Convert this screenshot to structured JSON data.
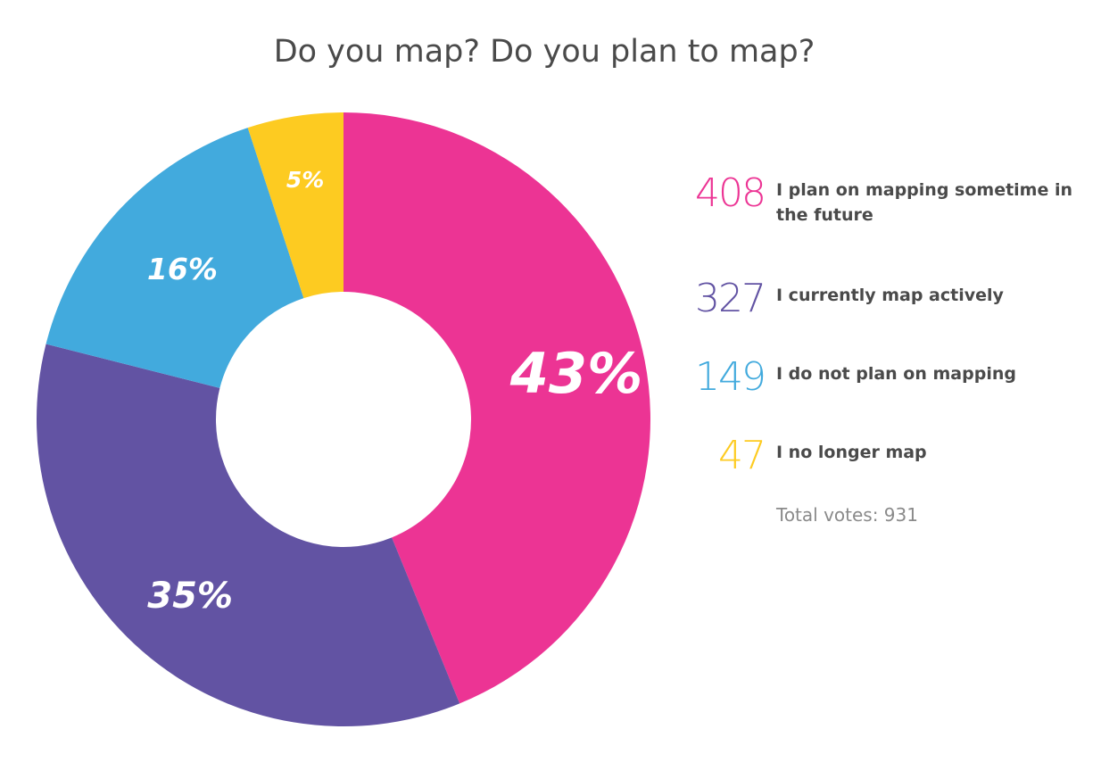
{
  "chart_data": {
    "type": "pie",
    "title": "Do you map? Do you plan to map?",
    "legend_position": "right",
    "slices": [
      {
        "label": "I plan on mapping sometime in the future",
        "value": 408,
        "percent_label": "43%",
        "color": "#ec3494"
      },
      {
        "label": "I currently map actively",
        "value": 327,
        "percent_label": "35%",
        "color": "#6253a3"
      },
      {
        "label": "I do not plan on mapping",
        "value": 149,
        "percent_label": "16%",
        "color": "#42aadd"
      },
      {
        "label": "I no longer map",
        "value": 47,
        "percent_label": "5%",
        "color": "#fdcb21"
      }
    ],
    "total_label": "Total votes: 931"
  }
}
